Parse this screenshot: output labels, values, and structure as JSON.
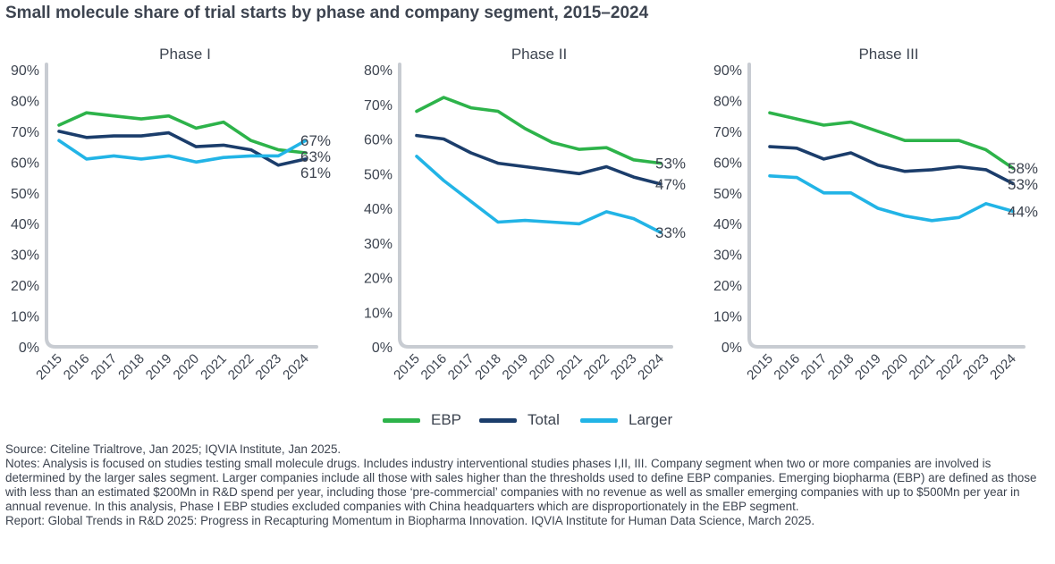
{
  "title": "Small molecule share of trial starts by phase and company segment, 2015–2024",
  "legend": [
    {
      "name": "EBP",
      "color": "#2db34a"
    },
    {
      "name": "Total",
      "color": "#1b3d6b"
    },
    {
      "name": "Larger",
      "color": "#22b4e6"
    }
  ],
  "chart_data": [
    {
      "type": "line",
      "title": "Phase I",
      "x": [
        "2015",
        "2016",
        "2017",
        "2018",
        "2019",
        "2020",
        "2021",
        "2022",
        "2023",
        "2024"
      ],
      "ylim": [
        0,
        0.9
      ],
      "yticks": [
        "0%",
        "10%",
        "20%",
        "30%",
        "40%",
        "50%",
        "60%",
        "70%",
        "80%",
        "90%"
      ],
      "series": [
        {
          "name": "EBP",
          "color": "#2db34a",
          "values": [
            0.72,
            0.76,
            0.75,
            0.74,
            0.75,
            0.71,
            0.73,
            0.67,
            0.64,
            0.63
          ]
        },
        {
          "name": "Total",
          "color": "#1b3d6b",
          "values": [
            0.7,
            0.68,
            0.685,
            0.685,
            0.695,
            0.65,
            0.655,
            0.64,
            0.59,
            0.61
          ]
        },
        {
          "name": "Larger",
          "color": "#22b4e6",
          "values": [
            0.67,
            0.61,
            0.62,
            0.61,
            0.62,
            0.6,
            0.615,
            0.62,
            0.62,
            0.67
          ]
        }
      ],
      "end_labels": [
        {
          "series": "Larger",
          "text": "67%"
        },
        {
          "series": "EBP",
          "text": "63%"
        },
        {
          "series": "Total",
          "text": "61%"
        }
      ]
    },
    {
      "type": "line",
      "title": "Phase II",
      "x": [
        "2015",
        "2016",
        "2017",
        "2018",
        "2019",
        "2020",
        "2021",
        "2022",
        "2023",
        "2024"
      ],
      "ylim": [
        0,
        0.8
      ],
      "yticks": [
        "0%",
        "10%",
        "20%",
        "30%",
        "40%",
        "50%",
        "60%",
        "70%",
        "80%"
      ],
      "series": [
        {
          "name": "EBP",
          "color": "#2db34a",
          "values": [
            0.68,
            0.72,
            0.69,
            0.68,
            0.63,
            0.59,
            0.57,
            0.575,
            0.54,
            0.53
          ]
        },
        {
          "name": "Total",
          "color": "#1b3d6b",
          "values": [
            0.61,
            0.6,
            0.56,
            0.53,
            0.52,
            0.51,
            0.5,
            0.52,
            0.49,
            0.47
          ]
        },
        {
          "name": "Larger",
          "color": "#22b4e6",
          "values": [
            0.55,
            0.48,
            0.42,
            0.36,
            0.365,
            0.36,
            0.355,
            0.39,
            0.37,
            0.33
          ]
        }
      ],
      "end_labels": [
        {
          "series": "EBP",
          "text": "53%"
        },
        {
          "series": "Total",
          "text": "47%"
        },
        {
          "series": "Larger",
          "text": "33%"
        }
      ]
    },
    {
      "type": "line",
      "title": "Phase III",
      "x": [
        "2015",
        "2016",
        "2017",
        "2018",
        "2019",
        "2020",
        "2021",
        "2022",
        "2023",
        "2024"
      ],
      "ylim": [
        0,
        0.9
      ],
      "yticks": [
        "0%",
        "10%",
        "20%",
        "30%",
        "40%",
        "50%",
        "60%",
        "70%",
        "80%",
        "90%"
      ],
      "series": [
        {
          "name": "EBP",
          "color": "#2db34a",
          "values": [
            0.76,
            0.74,
            0.72,
            0.73,
            0.7,
            0.67,
            0.67,
            0.67,
            0.64,
            0.58
          ]
        },
        {
          "name": "Total",
          "color": "#1b3d6b",
          "values": [
            0.65,
            0.645,
            0.61,
            0.63,
            0.59,
            0.57,
            0.575,
            0.585,
            0.575,
            0.53
          ]
        },
        {
          "name": "Larger",
          "color": "#22b4e6",
          "values": [
            0.555,
            0.55,
            0.5,
            0.5,
            0.45,
            0.425,
            0.41,
            0.42,
            0.465,
            0.44
          ]
        }
      ],
      "end_labels": [
        {
          "series": "EBP",
          "text": "58%"
        },
        {
          "series": "Total",
          "text": "53%"
        },
        {
          "series": "Larger",
          "text": "44%"
        }
      ]
    }
  ],
  "notes": {
    "source": "Source: Citeline Trialtrove, Jan 2025; IQVIA Institute, Jan 2025.",
    "notes": "Notes: Analysis is focused on studies testing small molecule drugs. Includes industry interventional studies phases I,II, III. Company segment when two or more companies are involved is determined by the larger sales segment. Larger companies include all those with sales higher than the thresholds used to define EBP companies. Emerging biopharma (EBP) are defined as those with less than an estimated $200Mn in R&D spend per year, including those ‘pre-commercial’ companies with no revenue as well as smaller emerging companies with up to $500Mn per year in annual revenue. In this analysis, Phase I EBP studies excluded companies with China headquarters which are disproportionately in the EBP segment.",
    "report": "Report: Global Trends in R&D 2025: Progress in Recapturing Momentum in Biopharma Innovation. IQVIA Institute for Human Data Science, March 2025."
  }
}
